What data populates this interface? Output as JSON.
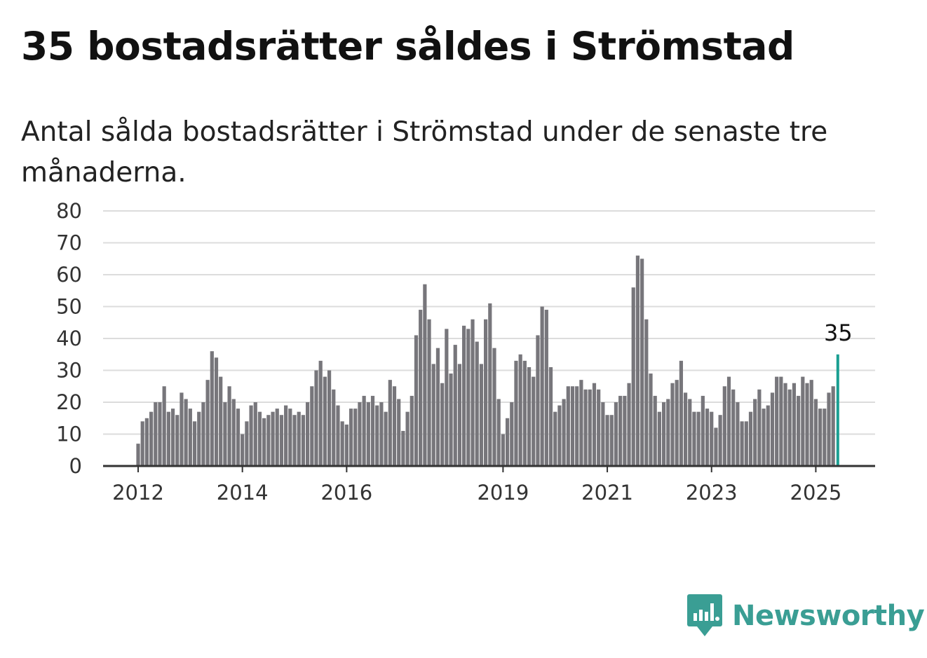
{
  "header": {
    "title": "35 bostadsrätter såldes i Strömstad",
    "subtitle": "Antal sålda bostadsrätter i Strömstad under de senaste tre månaderna."
  },
  "brand": {
    "name": "Newsworthy",
    "icon": "newsworthy-logo-icon",
    "color": "#3a9e94"
  },
  "chart_data": {
    "type": "bar",
    "x_unit": "month",
    "start": "2012-01",
    "end": "2025-06",
    "values": [
      7,
      14,
      15,
      17,
      20,
      20,
      25,
      17,
      18,
      16,
      23,
      21,
      18,
      14,
      17,
      20,
      27,
      36,
      34,
      28,
      20,
      25,
      21,
      18,
      10,
      14,
      19,
      20,
      17,
      15,
      16,
      17,
      18,
      16,
      19,
      18,
      16,
      17,
      16,
      20,
      25,
      30,
      33,
      28,
      30,
      24,
      19,
      14,
      13,
      18,
      18,
      20,
      22,
      20,
      22,
      19,
      20,
      17,
      27,
      25,
      21,
      11,
      17,
      22,
      41,
      49,
      57,
      46,
      32,
      37,
      26,
      43,
      29,
      38,
      32,
      44,
      43,
      46,
      39,
      32,
      46,
      51,
      37,
      21,
      10,
      15,
      20,
      33,
      35,
      33,
      31,
      28,
      41,
      50,
      49,
      31,
      17,
      19,
      21,
      25,
      25,
      25,
      27,
      24,
      24,
      26,
      24,
      20,
      16,
      16,
      20,
      22,
      22,
      26,
      56,
      66,
      65,
      46,
      29,
      22,
      17,
      20,
      21,
      26,
      27,
      33,
      23,
      21,
      17,
      17,
      22,
      18,
      17,
      12,
      16,
      25,
      28,
      24,
      20,
      14,
      14,
      17,
      21,
      24,
      18,
      19,
      23,
      28,
      28,
      26,
      24,
      26,
      22,
      28,
      26,
      27,
      21,
      18,
      18,
      23,
      25,
      35
    ],
    "highlight_last": true,
    "highlight_label": "35",
    "x_ticks": [
      "2012",
      "2014",
      "2016",
      "2019",
      "2021",
      "2023",
      "2025"
    ],
    "y_ticks": [
      "0",
      "10",
      "20",
      "30",
      "40",
      "50",
      "60",
      "70",
      "80"
    ],
    "ylim": [
      0,
      80
    ],
    "grid": true,
    "colors": {
      "bar": "#77767b",
      "highlight": "#1a9f92",
      "grid": "#dcdcdc",
      "axis": "#333333"
    }
  }
}
